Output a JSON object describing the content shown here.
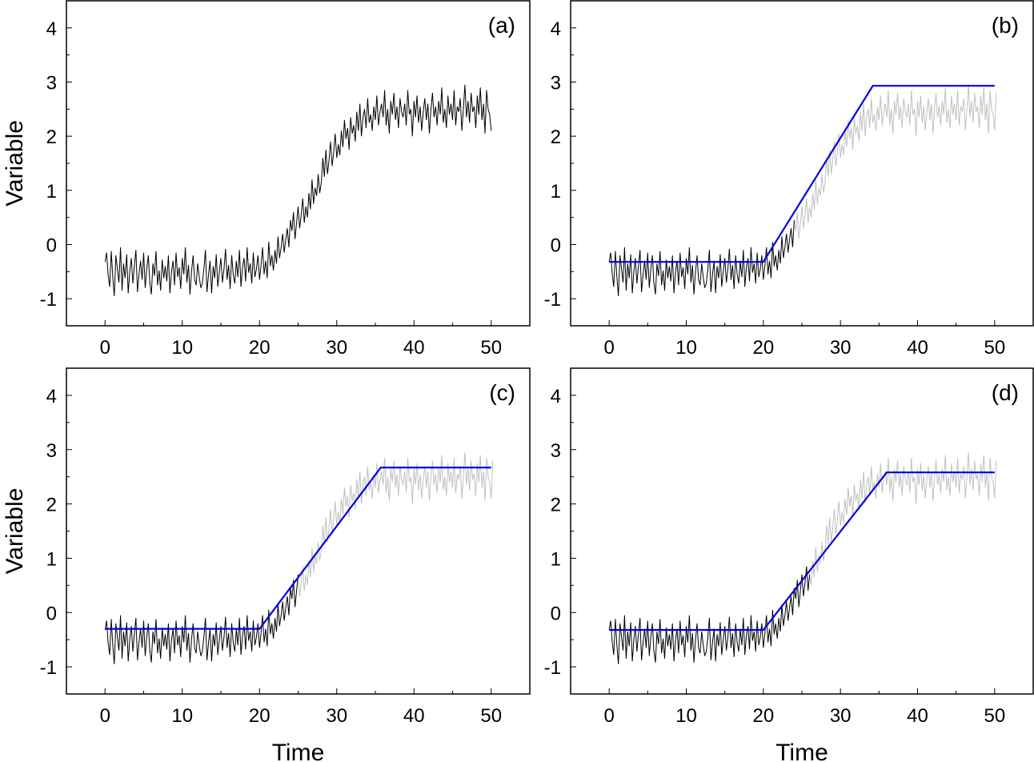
{
  "chart_data": {
    "type": "line",
    "layout": "2x2 grid",
    "shared": {
      "xlabel": "Time",
      "ylabel": "Variable",
      "xlim": [
        -5,
        55
      ],
      "ylim": [
        -1.5,
        4.5
      ],
      "xticks": [
        0,
        10,
        20,
        30,
        40,
        50
      ],
      "xtick_labels": [
        "0",
        "10",
        "20",
        "30",
        "40",
        "50"
      ],
      "yticks": [
        -1,
        0,
        1,
        2,
        3,
        4
      ],
      "ytick_labels": [
        "-1",
        "0",
        "1",
        "2",
        "3",
        "4"
      ],
      "x_minor_step": 5,
      "y_minor_step": 0.5,
      "grid": false,
      "colors": {
        "observed": "#000000",
        "unobserved": "#c0c0c0",
        "fit": "#0000e0",
        "axis": "#000000"
      }
    },
    "time": {
      "start": 0,
      "step": 0.2
    },
    "series_values": [
      -0.32,
      -0.15,
      -0.55,
      -0.78,
      -0.12,
      -0.6,
      -0.95,
      -0.2,
      -0.45,
      -0.7,
      -0.05,
      -0.85,
      -0.35,
      -0.62,
      -0.18,
      -0.9,
      -0.5,
      -0.25,
      -0.72,
      -0.4,
      -0.1,
      -0.88,
      -0.55,
      -0.3,
      -0.65,
      -0.15,
      -0.8,
      -0.45,
      -0.2,
      -0.7,
      -0.92,
      -0.35,
      -0.58,
      -0.12,
      -0.75,
      -0.48,
      -0.85,
      -0.28,
      -0.62,
      -0.4,
      -0.68,
      -0.2,
      -0.9,
      -0.52,
      -0.3,
      -0.75,
      -0.15,
      -0.6,
      -0.42,
      -0.82,
      -0.25,
      -0.55,
      -0.05,
      -0.7,
      -0.38,
      -0.92,
      -0.5,
      -0.2,
      -0.65,
      -0.75,
      -0.35,
      -0.6,
      -0.8,
      -0.72,
      -0.45,
      -0.1,
      -0.88,
      -0.55,
      -0.3,
      -0.9,
      -0.4,
      -0.62,
      -0.18,
      -0.78,
      -0.5,
      -0.25,
      -0.7,
      -0.45,
      -0.08,
      -0.65,
      -0.38,
      -0.82,
      -0.2,
      -0.55,
      -0.72,
      -0.3,
      -0.6,
      -0.1,
      -0.78,
      -0.42,
      -0.25,
      -0.68,
      -0.05,
      -0.52,
      -0.35,
      -0.72,
      -0.15,
      -0.6,
      -0.45,
      -0.2,
      -0.65,
      -0.38,
      -0.05,
      -0.55,
      -0.3,
      -0.62,
      0.05,
      -0.4,
      -0.2,
      -0.48,
      -0.1,
      -0.35,
      0.15,
      -0.25,
      -0.05,
      0.2,
      -0.15,
      0.1,
      0.3,
      -0.05,
      0.45,
      0.25,
      0.6,
      0.1,
      0.4,
      0.7,
      0.3,
      0.55,
      0.85,
      0.4,
      0.7,
      0.5,
      0.95,
      0.65,
      1.2,
      0.75,
      1.05,
      0.9,
      1.3,
      0.95,
      1.15,
      1.6,
      1.25,
      1.75,
      1.3,
      1.55,
      1.9,
      1.45,
      1.7,
      2.05,
      1.6,
      1.85,
      1.65,
      2.1,
      1.8,
      2.3,
      1.95,
      2.15,
      1.75,
      2.35,
      2.05,
      2.2,
      1.9,
      2.45,
      2.1,
      2.6,
      2.0,
      2.35,
      2.5,
      2.15,
      2.7,
      2.25,
      2.4,
      2.1,
      2.55,
      2.3,
      2.75,
      2.2,
      2.45,
      2.6,
      2.35,
      2.85,
      2.2,
      2.5,
      2.05,
      2.65,
      2.4,
      2.8,
      2.3,
      2.55,
      2.15,
      2.7,
      2.45,
      2.35,
      2.6,
      2.2,
      2.85,
      2.4,
      2.5,
      2.0,
      2.65,
      2.35,
      2.75,
      2.25,
      2.55,
      2.1,
      2.45,
      2.7,
      2.3,
      2.6,
      2.05,
      2.5,
      2.8,
      2.35,
      2.55,
      2.2,
      2.65,
      2.4,
      2.9,
      2.25,
      2.5,
      2.15,
      2.75,
      2.4,
      2.6,
      2.3,
      2.85,
      2.2,
      2.55,
      2.45,
      2.7,
      2.1,
      2.5,
      2.95,
      2.35,
      2.65,
      2.25,
      2.8,
      2.45,
      2.55,
      2.15,
      2.75,
      2.4,
      2.9,
      2.3,
      2.6,
      2.05,
      2.85,
      2.5,
      2.4,
      2.1,
      2.8
    ],
    "panels": [
      {
        "id": "a",
        "label": "(a)",
        "observed_until": 50,
        "show_unobserved": false,
        "fit": null,
        "show_ylabel": true,
        "show_xlabel": false
      },
      {
        "id": "b",
        "label": "(b)",
        "observed_until": 24,
        "show_unobserved": true,
        "fit": {
          "type": "piecewise-linear",
          "points": [
            [
              0,
              -0.32
            ],
            [
              20,
              -0.32
            ],
            [
              34.2,
              2.93
            ],
            [
              50,
              2.93
            ]
          ]
        },
        "show_ylabel": false,
        "show_xlabel": false
      },
      {
        "id": "c",
        "label": "(c)",
        "observed_until": 25,
        "show_unobserved": true,
        "fit": {
          "type": "piecewise-linear",
          "points": [
            [
              0,
              -0.3
            ],
            [
              20,
              -0.3
            ],
            [
              35.7,
              2.67
            ],
            [
              50,
              2.67
            ]
          ]
        },
        "show_ylabel": true,
        "show_xlabel": true
      },
      {
        "id": "d",
        "label": "(d)",
        "observed_until": 26,
        "show_unobserved": true,
        "fit": {
          "type": "piecewise-linear",
          "points": [
            [
              0,
              -0.32
            ],
            [
              20,
              -0.32
            ],
            [
              36,
              2.58
            ],
            [
              50,
              2.58
            ]
          ]
        },
        "show_ylabel": false,
        "show_xlabel": true
      }
    ]
  }
}
